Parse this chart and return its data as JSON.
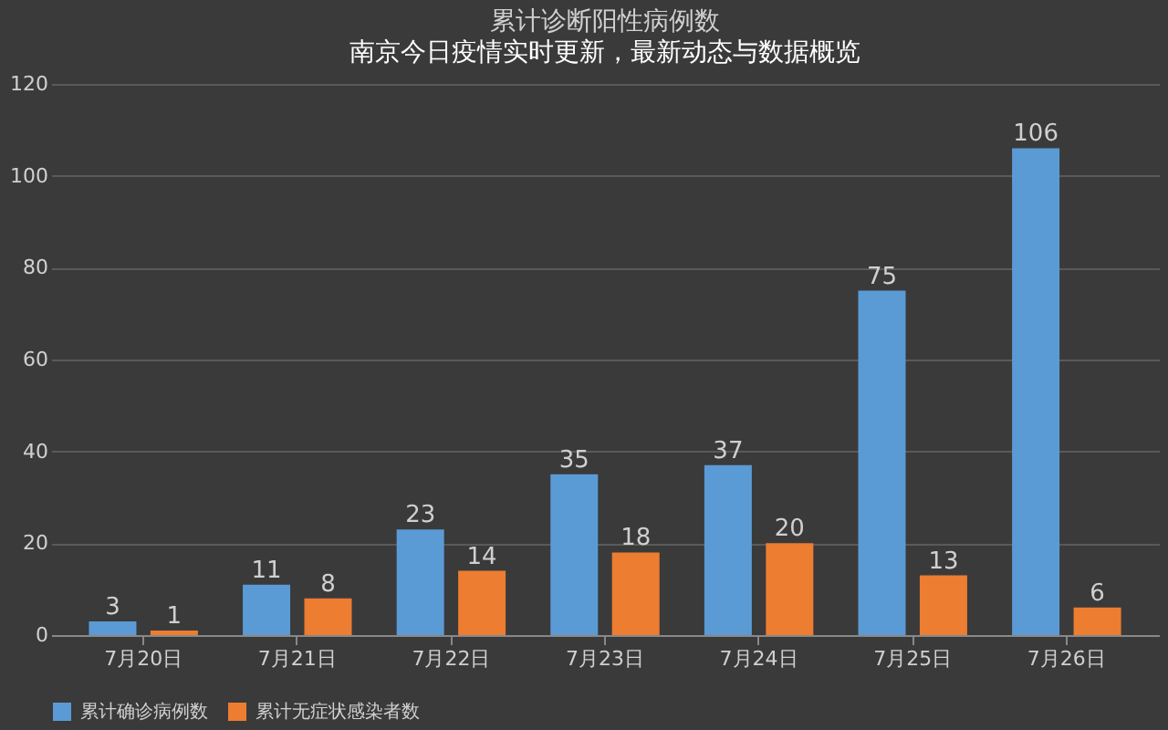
{
  "chart_data": {
    "type": "bar",
    "title": "累计诊断阳性病例数",
    "subtitle": "南京今日疫情实时更新，最新动态与数据概览",
    "categories": [
      "7月20日",
      "7月21日",
      "7月22日",
      "7月23日",
      "7月24日",
      "7月25日",
      "7月26日"
    ],
    "series": [
      {
        "name": "累计确诊病例数",
        "color": "#5b9bd5",
        "values": [
          3,
          11,
          23,
          35,
          37,
          75,
          106
        ]
      },
      {
        "name": "累计无症状感染者数",
        "color": "#ed7d31",
        "values": [
          1,
          8,
          14,
          18,
          20,
          13,
          6
        ]
      }
    ],
    "ylim": [
      0,
      120
    ],
    "yticks": [
      0,
      20,
      40,
      60,
      80,
      100,
      120
    ],
    "grid": "y",
    "legend": "bottom",
    "data_labels": true
  }
}
